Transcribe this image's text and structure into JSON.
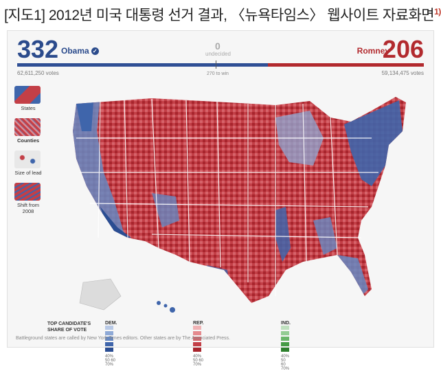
{
  "caption": {
    "prefix": "[지도1]",
    "text": "2012년 미국 대통령 선거 결과, 〈뉴욕타임스〉 웹사이트 자료화면",
    "footnote_mark": "1)"
  },
  "header": {
    "obama": {
      "votes_ec": "332",
      "name": "Obama",
      "popular": "62,611,250 votes",
      "color": "#2b4b8c"
    },
    "romney": {
      "votes_ec": "206",
      "name": "Romney",
      "popular": "59,134,475 votes",
      "color": "#b22a2e"
    },
    "undecided": {
      "count": "0",
      "label": "undecided"
    },
    "win_threshold": "270 to win",
    "ec_share": {
      "obama": 332,
      "romney": 206,
      "total": 538
    }
  },
  "views": [
    {
      "label": "States",
      "active": false
    },
    {
      "label": "Counties",
      "active": true
    },
    {
      "label": "Size of lead",
      "active": false
    },
    {
      "label": "Shift from 2008",
      "active": false
    }
  ],
  "legend": {
    "title": "TOP CANDIDATE'S SHARE OF VOTE",
    "groups": [
      {
        "name": "DEM.",
        "scale": "40% 50   60 70%",
        "colors": [
          "#b8c9e6",
          "#8ea9d6",
          "#6688c2",
          "#3f65ab",
          "#2a4d92"
        ]
      },
      {
        "name": "REP.",
        "scale": "40% 50   60 70%",
        "colors": [
          "#f0b3b5",
          "#e58a8e",
          "#d6636a",
          "#c33f47",
          "#a8252d"
        ]
      },
      {
        "name": "IND.",
        "scale": "40% 50   60 70%",
        "colors": [
          "#bfe0bf",
          "#94cc94",
          "#6ab56a",
          "#459b45",
          "#2c7f2c"
        ]
      }
    ]
  },
  "footnote": "Battleground states are called by New York Times editors. Other states are by The Associated Press.",
  "colors": {
    "dem": "#3f65ab",
    "rep": "#c33f47",
    "background": "#f6f6f6"
  }
}
